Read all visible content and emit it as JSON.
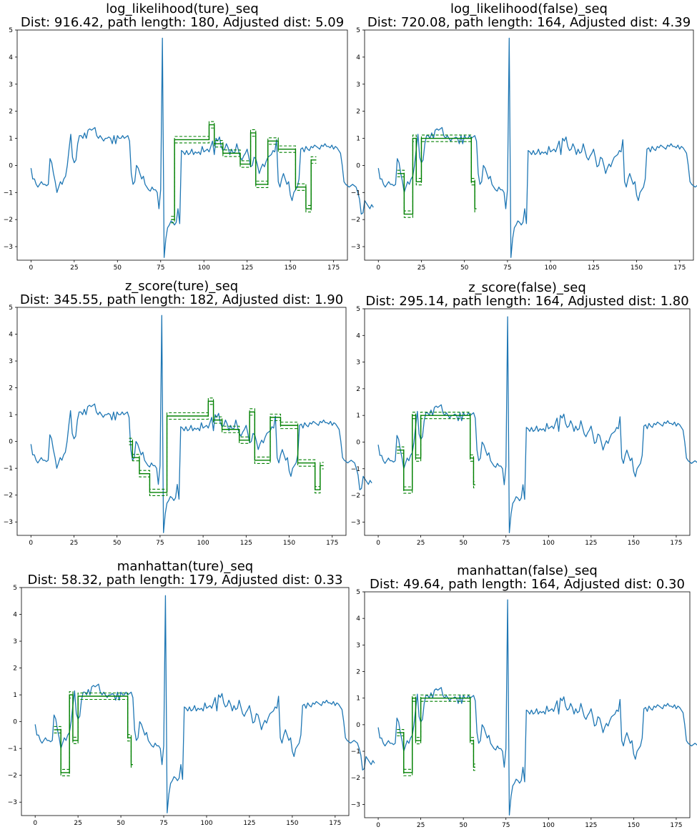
{
  "colors": {
    "series": "#1f77b4",
    "path": "#008000",
    "axes": "#000000",
    "background": "#ffffff"
  },
  "series_base": [
    -0.1,
    -0.5,
    -0.5,
    -0.7,
    -0.8,
    -0.7,
    -0.6,
    -0.7,
    -0.7,
    -0.75,
    -0.7,
    0.25,
    0.1,
    -0.3,
    -0.6,
    -1.0,
    -0.8,
    -0.6,
    -0.7,
    -0.5,
    -0.4,
    0.0,
    0.6,
    1.15,
    0.3,
    0.1,
    0.2,
    0.8,
    1.1,
    1.1,
    1.0,
    1.2,
    1.0,
    1.3,
    1.35,
    1.3,
    1.35,
    1.4,
    1.1,
    1.0,
    1.1,
    1.0,
    0.9,
    1.0,
    1.0,
    1.05,
    1.0,
    0.8,
    1.1,
    0.8,
    1.1,
    1.0,
    1.0,
    1.1,
    1.0,
    1.05,
    1.1,
    0.9,
    -0.3,
    -0.7,
    -0.6,
    0.0,
    -0.1,
    -0.3,
    -0.5,
    -0.4,
    -0.7,
    -0.8,
    -0.9,
    -0.95,
    -0.8,
    -0.9,
    -0.9,
    -1.0,
    -1.6,
    -0.9,
    4.7,
    -3.4,
    -2.7,
    -2.3,
    -2.2,
    -2.05,
    -2.1,
    -2.2,
    -2.1,
    -1.6,
    -2.15,
    0.55,
    0.5,
    0.4,
    0.55,
    0.4,
    0.45,
    0.6,
    0.4,
    0.5,
    0.45,
    0.5,
    0.4,
    0.7,
    0.5,
    0.55,
    0.6,
    0.5,
    0.7,
    0.9,
    0.4,
    1.0,
    0.9,
    1.05,
    0.7,
    0.55,
    0.6,
    0.8,
    0.65,
    0.4,
    0.6,
    0.45,
    0.5,
    0.8,
    0.55,
    0.3,
    0.2,
    0.35,
    0.45,
    0.6,
    0.3,
    -0.05,
    0.0,
    0.3,
    0.25,
    0.0,
    -0.3,
    -0.1,
    0.05,
    -0.05,
    0.15,
    0.3,
    0.35,
    0.4,
    0.55,
    0.5,
    0.95,
    -0.6,
    -0.8,
    -0.5,
    -0.3,
    -0.5,
    -0.7,
    -0.6,
    -1.1,
    -1.3,
    -1.0,
    -0.9,
    -0.8,
    -0.5,
    0.6,
    0.65,
    0.5,
    0.7,
    0.6,
    0.55,
    0.7,
    0.65,
    0.75,
    0.7,
    0.65,
    0.6,
    0.75,
    0.7,
    0.8,
    0.7,
    0.7,
    0.65,
    0.75,
    0.6,
    0.7,
    0.65,
    0.55,
    0.45,
    0.0,
    -0.6,
    -0.7,
    -0.75,
    -0.8,
    -0.75,
    -0.7,
    -0.75,
    -0.8,
    -1.0,
    -1.25,
    -1.8,
    -1.75,
    -1.3,
    -1.4,
    -1.5,
    -1.6,
    -1.45,
    -1.55
  ],
  "chart_data": [
    {
      "type": "line",
      "title": "log_likelihood(ture)_seq",
      "subtitle": "Dist: 916.42, path length: 180, Adjusted dist: 5.09",
      "xlim": [
        0,
        175
      ],
      "ylim": [
        -3.5,
        5.0
      ],
      "xticks": [
        0,
        25,
        50,
        75,
        100,
        125,
        150,
        175
      ],
      "yticks": [
        -3,
        -2,
        -1,
        0,
        1,
        2,
        3,
        4,
        5
      ],
      "path_segments": [
        {
          "x0": 81,
          "x1": 83,
          "y": -2.0
        },
        {
          "x0": 83,
          "x1": 103,
          "y": 0.95
        },
        {
          "x0": 103,
          "x1": 106,
          "y": 1.5
        },
        {
          "x0": 106,
          "x1": 111,
          "y": 0.8
        },
        {
          "x0": 111,
          "x1": 121,
          "y": 0.45
        },
        {
          "x0": 121,
          "x1": 127,
          "y": 0.05
        },
        {
          "x0": 127,
          "x1": 130,
          "y": 1.2
        },
        {
          "x0": 130,
          "x1": 137,
          "y": -0.7
        },
        {
          "x0": 137,
          "x1": 143,
          "y": 0.9
        },
        {
          "x0": 143,
          "x1": 153,
          "y": 0.6
        },
        {
          "x0": 153,
          "x1": 159,
          "y": -0.8
        },
        {
          "x0": 159,
          "x1": 162,
          "y": -1.6
        },
        {
          "x0": 162,
          "x1": 165,
          "y": 0.2
        }
      ]
    },
    {
      "type": "line",
      "title": "log_likelihood(false)_seq",
      "subtitle": "Dist: 720.08, path length: 164, Adjusted dist: 4.39",
      "xlim": [
        0,
        175
      ],
      "ylim": [
        -3.5,
        5.0
      ],
      "xticks": [
        0,
        25,
        50,
        75,
        100,
        125,
        150,
        175
      ],
      "yticks": [
        -3,
        -2,
        -1,
        0,
        1,
        2,
        3,
        4,
        5
      ],
      "path_segments": [
        {
          "x0": 11,
          "x1": 15,
          "y": -0.3
        },
        {
          "x0": 15,
          "x1": 20,
          "y": -1.8
        },
        {
          "x0": 20,
          "x1": 22,
          "y": 1.0
        },
        {
          "x0": 22,
          "x1": 25,
          "y": -0.6
        },
        {
          "x0": 25,
          "x1": 54,
          "y": 1.0
        },
        {
          "x0": 54,
          "x1": 56,
          "y": -0.6
        },
        {
          "x0": 56,
          "x1": 57,
          "y": -1.6
        }
      ]
    },
    {
      "type": "line",
      "title": "z_score(ture)_seq",
      "subtitle": "Dist: 345.55, path length: 182, Adjusted dist: 1.90",
      "xlim": [
        0,
        175
      ],
      "ylim": [
        -3.5,
        5.0
      ],
      "xticks": [
        0,
        25,
        50,
        75,
        100,
        125,
        150,
        175
      ],
      "yticks": [
        -3,
        -2,
        -1,
        0,
        1,
        2,
        3,
        4,
        5
      ],
      "path_segments": [
        {
          "x0": 57,
          "x1": 59,
          "y": 0.0
        },
        {
          "x0": 59,
          "x1": 63,
          "y": -0.6
        },
        {
          "x0": 63,
          "x1": 69,
          "y": -1.2
        },
        {
          "x0": 69,
          "x1": 79,
          "y": -1.9
        },
        {
          "x0": 79,
          "x1": 103,
          "y": 0.95
        },
        {
          "x0": 103,
          "x1": 106,
          "y": 1.5
        },
        {
          "x0": 106,
          "x1": 111,
          "y": 0.8
        },
        {
          "x0": 111,
          "x1": 121,
          "y": 0.45
        },
        {
          "x0": 121,
          "x1": 127,
          "y": 0.05
        },
        {
          "x0": 127,
          "x1": 130,
          "y": 1.1
        },
        {
          "x0": 130,
          "x1": 139,
          "y": -0.7
        },
        {
          "x0": 139,
          "x1": 145,
          "y": 0.9
        },
        {
          "x0": 145,
          "x1": 155,
          "y": 0.6
        },
        {
          "x0": 155,
          "x1": 165,
          "y": -0.8
        },
        {
          "x0": 165,
          "x1": 168,
          "y": -1.8
        },
        {
          "x0": 168,
          "x1": 170,
          "y": -0.9
        }
      ]
    },
    {
      "type": "line",
      "title": "z_score(false)_seq",
      "subtitle": "Dist: 295.14, path length: 164, Adjusted dist: 1.80",
      "xlim": [
        0,
        175
      ],
      "ylim": [
        -3.5,
        5.0
      ],
      "xticks": [
        0,
        25,
        50,
        75,
        100,
        125,
        150,
        175
      ],
      "yticks": [
        -3,
        -2,
        -1,
        0,
        1,
        2,
        3,
        4,
        5
      ],
      "path_segments": [
        {
          "x0": 11,
          "x1": 15,
          "y": -0.3
        },
        {
          "x0": 15,
          "x1": 20,
          "y": -1.8
        },
        {
          "x0": 20,
          "x1": 22,
          "y": 1.0
        },
        {
          "x0": 22,
          "x1": 25,
          "y": -0.6
        },
        {
          "x0": 25,
          "x1": 54,
          "y": 1.0
        },
        {
          "x0": 54,
          "x1": 56,
          "y": -0.6
        },
        {
          "x0": 56,
          "x1": 57,
          "y": -1.6
        }
      ]
    },
    {
      "type": "line",
      "title": "manhattan(ture)_seq",
      "subtitle": "Dist: 58.32, path length: 179, Adjusted dist: 0.33",
      "xlim": [
        0,
        175
      ],
      "ylim": [
        -3.5,
        5.0
      ],
      "xticks": [
        0,
        25,
        50,
        75,
        100,
        125,
        150,
        175
      ],
      "yticks": [
        -3,
        -2,
        -1,
        0,
        1,
        2,
        3,
        4,
        5
      ],
      "path_segments": [
        {
          "x0": 11,
          "x1": 15,
          "y": -0.3
        },
        {
          "x0": 15,
          "x1": 20,
          "y": -1.9
        },
        {
          "x0": 20,
          "x1": 22,
          "y": 1.0
        },
        {
          "x0": 22,
          "x1": 25,
          "y": -0.7
        },
        {
          "x0": 25,
          "x1": 54,
          "y": 0.95
        },
        {
          "x0": 54,
          "x1": 56,
          "y": -0.6
        },
        {
          "x0": 56,
          "x1": 57,
          "y": -1.6
        }
      ]
    },
    {
      "type": "line",
      "title": "manhattan(false)_seq",
      "subtitle": "Dist: 49.64, path length: 164, Adjusted dist: 0.30",
      "xlim": [
        0,
        175
      ],
      "ylim": [
        -3.5,
        5.0
      ],
      "xticks": [
        0,
        25,
        50,
        75,
        100,
        125,
        150,
        175
      ],
      "yticks": [
        -3,
        -2,
        -1,
        0,
        1,
        2,
        3,
        4,
        5
      ],
      "path_segments": [
        {
          "x0": 11,
          "x1": 15,
          "y": -0.3
        },
        {
          "x0": 15,
          "x1": 20,
          "y": -1.8
        },
        {
          "x0": 20,
          "x1": 22,
          "y": 1.0
        },
        {
          "x0": 22,
          "x1": 25,
          "y": -0.6
        },
        {
          "x0": 25,
          "x1": 54,
          "y": 1.0
        },
        {
          "x0": 54,
          "x1": 56,
          "y": -0.6
        },
        {
          "x0": 56,
          "x1": 57,
          "y": -1.6
        }
      ]
    }
  ]
}
